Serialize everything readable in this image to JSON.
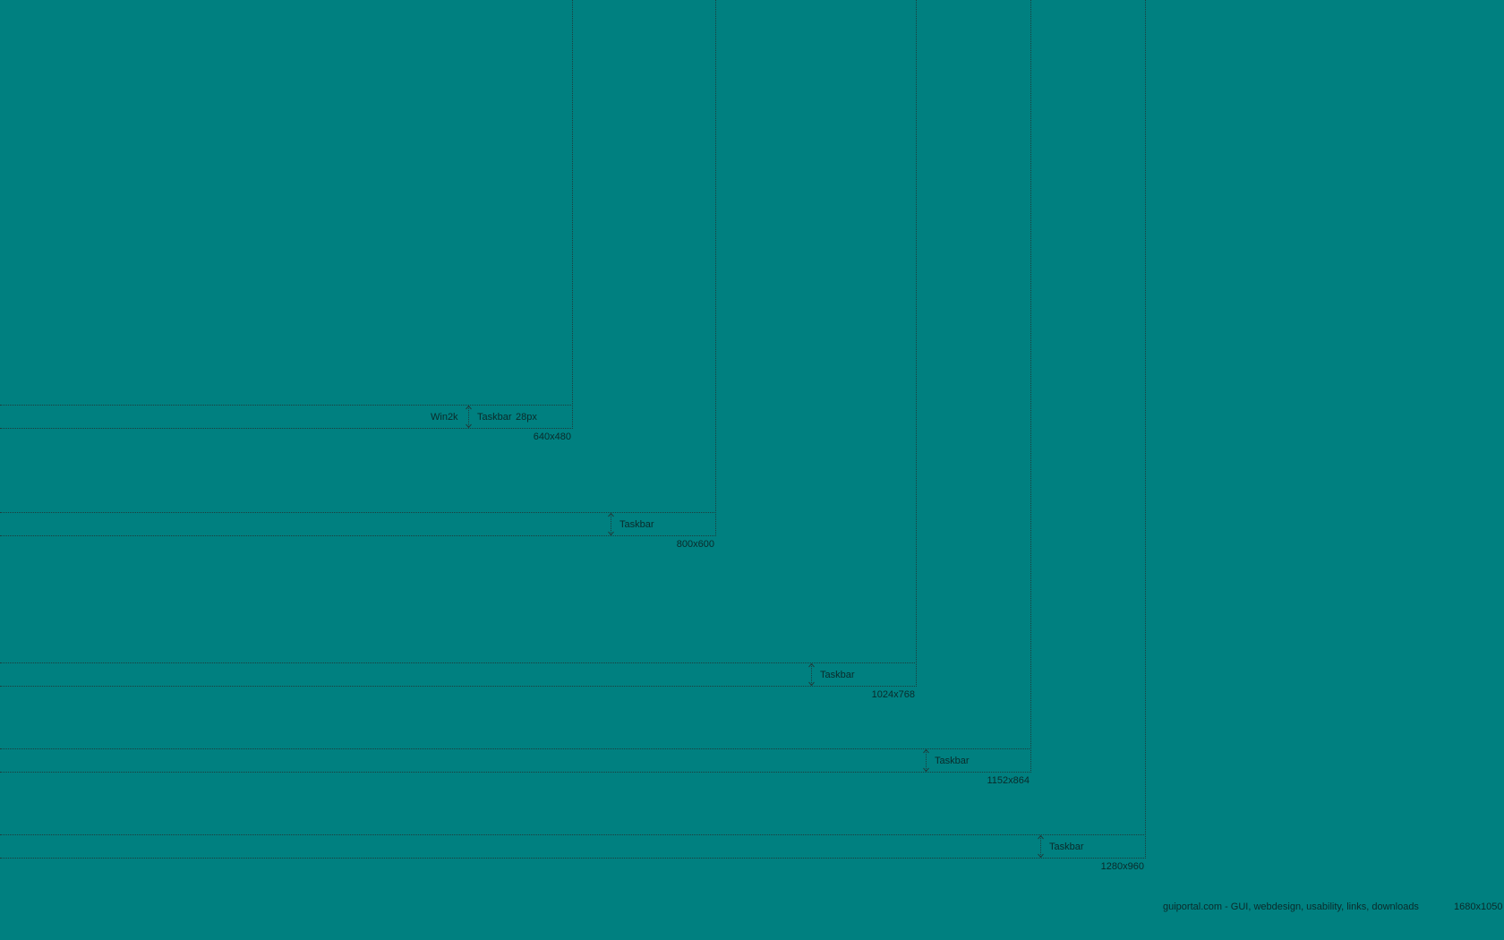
{
  "background_color": "#008080",
  "screens": [
    {
      "resolution": "640x480",
      "os_label": "Win2k",
      "taskbar_label": "Taskbar",
      "taskbar_height_label": "28px"
    },
    {
      "resolution": "800x600",
      "taskbar_label": "Taskbar"
    },
    {
      "resolution": "1024x768",
      "taskbar_label": "Taskbar"
    },
    {
      "resolution": "1152x864",
      "taskbar_label": "Taskbar"
    },
    {
      "resolution": "1280x960",
      "taskbar_label": "Taskbar"
    }
  ],
  "footer": {
    "site": "guiportal.com - GUI, webdesign, usability, links, downloads",
    "resolution": "1680x1050"
  }
}
